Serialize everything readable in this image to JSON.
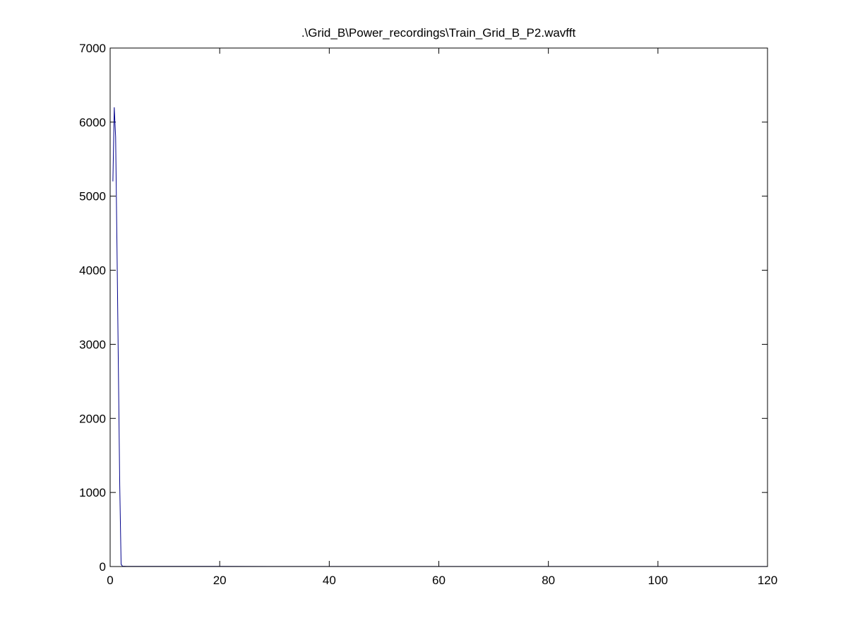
{
  "chart_data": {
    "type": "line",
    "title": ".\\Grid_B\\Power_recordings\\Train_Grid_B_P2.wavfft",
    "xlabel": "",
    "ylabel": "",
    "xlim": [
      0,
      120
    ],
    "ylim": [
      0,
      7000
    ],
    "xticks": [
      0,
      20,
      40,
      60,
      80,
      100,
      120
    ],
    "yticks": [
      0,
      1000,
      2000,
      3000,
      4000,
      5000,
      6000,
      7000
    ],
    "grid": false,
    "series": [
      {
        "color": "#00008b",
        "x": [
          0.5,
          0.75,
          1.0,
          1.25,
          1.5,
          1.75,
          2.0,
          2.25,
          3,
          10,
          20,
          40,
          60,
          80,
          100,
          120
        ],
        "y": [
          5200,
          6200,
          5800,
          4300,
          2700,
          1100,
          30,
          5,
          3,
          2,
          2,
          1,
          1,
          1,
          1,
          1
        ]
      }
    ]
  }
}
